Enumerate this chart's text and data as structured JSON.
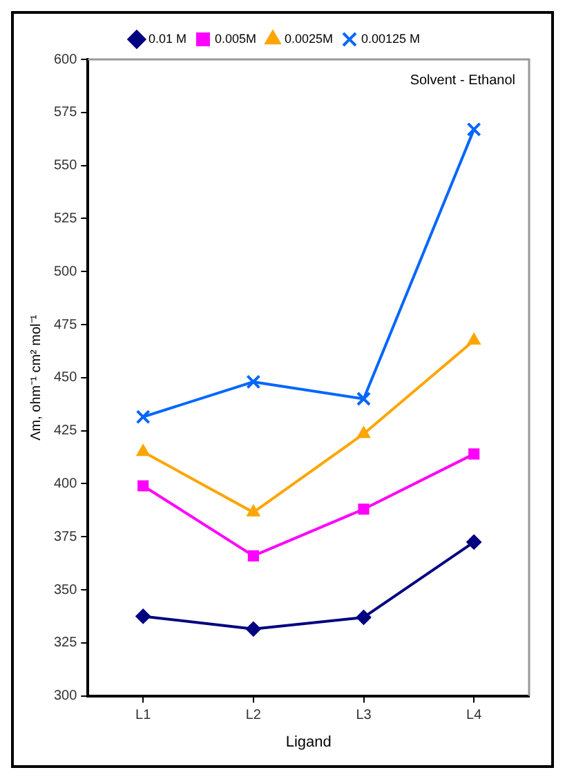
{
  "chart_data": {
    "type": "line",
    "categories": [
      "L1",
      "L2",
      "L3",
      "L4"
    ],
    "xlabel": "Ligand",
    "ylabel": "Λm, ohm⁻¹ cm² mol⁻¹",
    "annotations": [
      "Solvent - Ethanol"
    ],
    "ylim": [
      300,
      600
    ],
    "yticks": [
      300,
      325,
      350,
      375,
      400,
      425,
      450,
      475,
      500,
      525,
      550,
      575,
      600
    ],
    "grid": false,
    "legend": "top",
    "series": [
      {
        "name": "0.01 M",
        "color": "#000080",
        "marker": "diamond",
        "values": [
          337.5,
          331.5,
          337,
          372.5
        ]
      },
      {
        "name": "0.005M",
        "color": "#ff00ff",
        "marker": "square",
        "values": [
          399,
          366,
          388,
          414
        ]
      },
      {
        "name": "0.0025M",
        "color": "#ffa500",
        "marker": "triangle",
        "values": [
          415,
          386.5,
          423.5,
          467.5
        ]
      },
      {
        "name": "0.00125 M",
        "color": "#0066ff",
        "marker": "cross",
        "values": [
          431.5,
          448,
          440,
          567
        ]
      }
    ]
  }
}
